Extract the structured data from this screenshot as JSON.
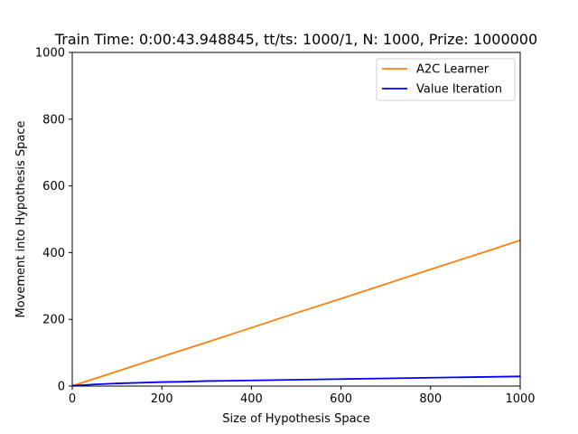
{
  "chart_data": {
    "type": "line",
    "title": "Train Time: 0:00:43.948845, tt/ts: 1000/1, N: 1000, Prize: 1000000",
    "xlabel": "Size of Hypothesis Space",
    "ylabel": "Movement into Hypothesis Space",
    "xlim": [
      0,
      1000
    ],
    "ylim": [
      0,
      1000
    ],
    "xticks": [
      0,
      200,
      400,
      600,
      800,
      1000
    ],
    "yticks": [
      0,
      200,
      400,
      600,
      800,
      1000
    ],
    "grid": false,
    "legend_position": "top-right",
    "series": [
      {
        "name": "A2C Learner",
        "color": "#ff7f0e",
        "x": [
          1,
          100,
          200,
          300,
          400,
          500,
          600,
          700,
          800,
          900,
          1000
        ],
        "y": [
          1,
          44,
          88,
          131,
          175,
          219,
          262,
          306,
          350,
          393,
          437
        ]
      },
      {
        "name": "Value Iteration",
        "color": "#0000ff",
        "x": [
          1,
          50,
          100,
          150,
          200,
          250,
          300,
          350,
          400,
          450,
          500,
          550,
          600,
          650,
          700,
          750,
          800,
          850,
          900,
          950,
          1000
        ],
        "y": [
          1,
          5,
          8,
          10,
          12,
          13,
          15,
          16,
          17,
          18,
          19,
          20,
          21,
          22,
          23,
          24,
          25,
          26,
          27,
          28,
          29
        ]
      }
    ]
  }
}
